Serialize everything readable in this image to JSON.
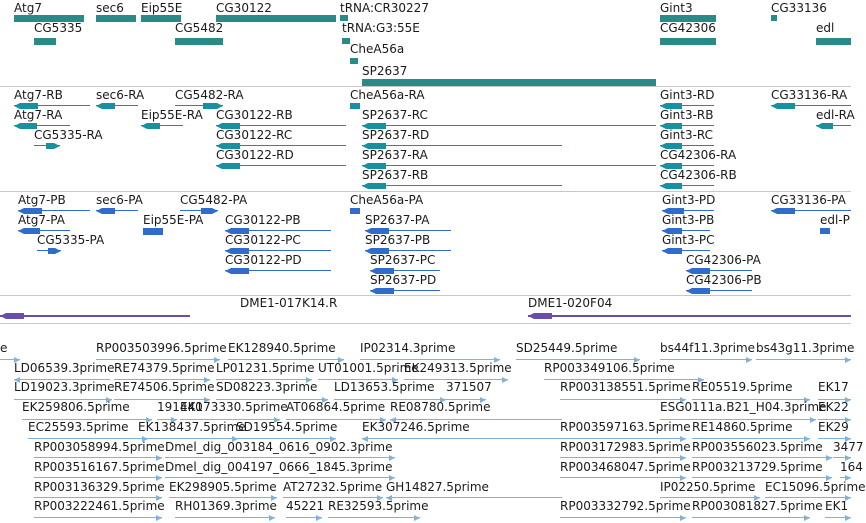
{
  "colors": {
    "gene": "#2a8a85",
    "transcript": "#1791a0",
    "protein": "#2f6ccc",
    "clone": "#6a4fa8",
    "est": "#7fb3d9",
    "separator": "#c8c8c8",
    "label": "#1a1a1a"
  },
  "tracks": [
    {
      "name": "genes",
      "features": [
        {
          "label": "Atg7"
        },
        {
          "label": "sec6"
        },
        {
          "label": "Eip55E"
        },
        {
          "label": "CG30122"
        },
        {
          "label": "tRNA:CR30227"
        },
        {
          "label": "Gint3"
        },
        {
          "label": "CG33136"
        },
        {
          "label": "CG5335"
        },
        {
          "label": "CG5482"
        },
        {
          "label": "tRNA:G3:55E"
        },
        {
          "label": "CG42306"
        },
        {
          "label": "edl"
        },
        {
          "label": "CheA56a"
        },
        {
          "label": "SP2637"
        }
      ]
    },
    {
      "name": "transcripts",
      "features": [
        {
          "label": "Atg7-RB"
        },
        {
          "label": "sec6-RA"
        },
        {
          "label": "CG5482-RA"
        },
        {
          "label": "CheA56a-RA"
        },
        {
          "label": "Gint3-RD"
        },
        {
          "label": "CG33136-RA"
        },
        {
          "label": "Atg7-RA"
        },
        {
          "label": "Eip55E-RA"
        },
        {
          "label": "CG30122-RB"
        },
        {
          "label": "SP2637-RC"
        },
        {
          "label": "Gint3-RB"
        },
        {
          "label": "edl-RA"
        },
        {
          "label": "CG5335-RA"
        },
        {
          "label": "CG30122-RC"
        },
        {
          "label": "SP2637-RD"
        },
        {
          "label": "Gint3-RC"
        },
        {
          "label": "CG30122-RD"
        },
        {
          "label": "SP2637-RA"
        },
        {
          "label": "CG42306-RA"
        },
        {
          "label": "SP2637-RB"
        },
        {
          "label": "CG42306-RB"
        }
      ]
    },
    {
      "name": "proteins",
      "features": [
        {
          "label": "Atg7-PB"
        },
        {
          "label": "sec6-PA"
        },
        {
          "label": "CG5482-PA"
        },
        {
          "label": "CheA56a-PA"
        },
        {
          "label": "Gint3-PD"
        },
        {
          "label": "CG33136-PA"
        },
        {
          "label": "Atg7-PA"
        },
        {
          "label": "Eip55E-PA"
        },
        {
          "label": "CG30122-PB"
        },
        {
          "label": "SP2637-PA"
        },
        {
          "label": "Gint3-PB"
        },
        {
          "label": "edl-P"
        },
        {
          "label": "CG5335-PA"
        },
        {
          "label": "CG30122-PC"
        },
        {
          "label": "SP2637-PB"
        },
        {
          "label": "Gint3-PC"
        },
        {
          "label": "CG30122-PD"
        },
        {
          "label": "SP2637-PC"
        },
        {
          "label": "CG42306-PA"
        },
        {
          "label": "SP2637-PD"
        },
        {
          "label": "CG42306-PB"
        }
      ]
    },
    {
      "name": "clones",
      "features": [
        {
          "label": "DME1-017K14.R"
        },
        {
          "label": "DME1-020F04"
        }
      ]
    },
    {
      "name": "ests",
      "features": [
        {
          "label": "e"
        },
        {
          "label": "RP003503996.5prime"
        },
        {
          "label": "EK128940.5prime"
        },
        {
          "label": "IP02314.3prime"
        },
        {
          "label": "SD25449.5prime"
        },
        {
          "label": "bs44f11.3prime"
        },
        {
          "label": "bs43g11.3prime"
        },
        {
          "label": "LD06539.3prime"
        },
        {
          "label": "RE74379.5prime"
        },
        {
          "label": "LP01231.5prime"
        },
        {
          "label": "UT01001.5prime"
        },
        {
          "label": "EK249313.5prime"
        },
        {
          "label": "RP003349106.5prime"
        },
        {
          "label": "LD19023.3prime"
        },
        {
          "label": "RE74506.5prime"
        },
        {
          "label": "SD08223.3prime"
        },
        {
          "label": "LD13653.5prime"
        },
        {
          "label": "371507"
        },
        {
          "label": "RP003138551.5prime"
        },
        {
          "label": "RE05519.5prime"
        },
        {
          "label": "EK17"
        },
        {
          "label": "EK259806.5prime"
        },
        {
          "label": "191440"
        },
        {
          "label": "EK173330.5prime"
        },
        {
          "label": "AT06864.5prime"
        },
        {
          "label": "RE08780.5prime"
        },
        {
          "label": "ESG0111a.B21_H04.3prime"
        },
        {
          "label": "EK22"
        },
        {
          "label": "EC25593.5prime"
        },
        {
          "label": "EK138437.5prime"
        },
        {
          "label": "SD19554.5prime"
        },
        {
          "label": "EK307246.5prime"
        },
        {
          "label": "RP003597163.5prime"
        },
        {
          "label": "RE14860.5prime"
        },
        {
          "label": "EK29"
        },
        {
          "label": "RP003058994.5prime"
        },
        {
          "label": "Dmel_dig_003184_0616_0902.3prime"
        },
        {
          "label": "RP003172983.5prime"
        },
        {
          "label": "RP003556023.5prime"
        },
        {
          "label": "3477"
        },
        {
          "label": "RP003516167.5prime"
        },
        {
          "label": "Dmel_dig_004197_0666_1845.3prime"
        },
        {
          "label": "RP003468047.5prime"
        },
        {
          "label": "RP003213729.5prime"
        },
        {
          "label": "164"
        },
        {
          "label": "RP003136329.5prime"
        },
        {
          "label": "EK298905.5prime"
        },
        {
          "label": "AT27232.5prime"
        },
        {
          "label": "GH14827.5prime"
        },
        {
          "label": "IP02250.5prime"
        },
        {
          "label": "EC15096.5prime"
        },
        {
          "label": "RP003222461.5prime"
        },
        {
          "label": "RH01369.3prime"
        },
        {
          "label": "45221"
        },
        {
          "label": "RE32593.5prime"
        },
        {
          "label": "RP003332792.5prime"
        },
        {
          "label": "RP003081827.5prime"
        },
        {
          "label": "EK1"
        }
      ]
    }
  ]
}
